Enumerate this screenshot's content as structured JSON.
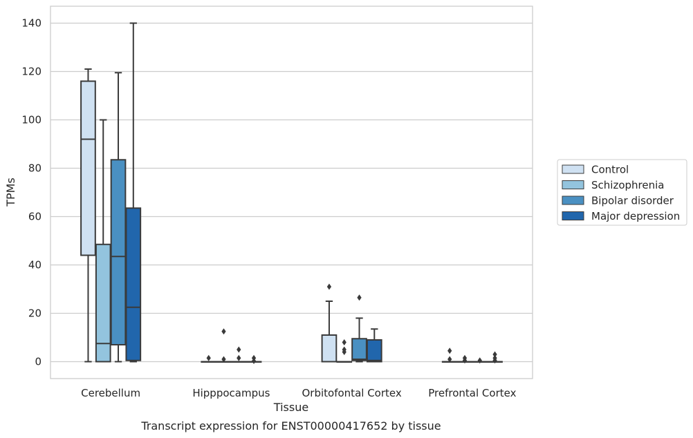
{
  "chart_data": {
    "type": "box",
    "title": "",
    "caption": "Transcript expression for ENST00000417652 by tissue",
    "xlabel": "Tissue",
    "ylabel": "TPMs",
    "ylim": [
      -7,
      147
    ],
    "yticks": [
      0,
      20,
      40,
      60,
      80,
      100,
      120,
      140
    ],
    "grid": "horizontal",
    "legend_position": "right",
    "categories": [
      "Cerebellum",
      "Hipppocampus",
      "Orbitofontal Cortex",
      "Prefrontal Cortex"
    ],
    "series": [
      {
        "name": "Control",
        "color": "#cfe1f2",
        "boxes": [
          {
            "min": 0,
            "q1": 44,
            "median": 92,
            "q3": 116,
            "max": 121,
            "outliers": []
          },
          {
            "min": 0,
            "q1": 0,
            "median": 0,
            "q3": 0,
            "max": 0,
            "outliers": [
              1.5
            ]
          },
          {
            "min": 0,
            "q1": 0,
            "median": 0,
            "q3": 11,
            "max": 25,
            "outliers": [
              31
            ]
          },
          {
            "min": 0,
            "q1": 0,
            "median": 0,
            "q3": 0,
            "max": 0,
            "outliers": [
              1,
              4.5
            ]
          }
        ]
      },
      {
        "name": "Schizophrenia",
        "color": "#93c4de",
        "boxes": [
          {
            "min": 0,
            "q1": 0,
            "median": 7.5,
            "q3": 48.5,
            "max": 100,
            "outliers": []
          },
          {
            "min": 0,
            "q1": 0,
            "median": 0,
            "q3": 0,
            "max": 0,
            "outliers": [
              1,
              12.5
            ]
          },
          {
            "min": 0,
            "q1": 0,
            "median": 0,
            "q3": 0,
            "max": 0,
            "outliers": [
              4,
              5,
              8
            ]
          },
          {
            "min": 0,
            "q1": 0,
            "median": 0,
            "q3": 0,
            "max": 0,
            "outliers": [
              0.5,
              1.5
            ]
          }
        ]
      },
      {
        "name": "Bipolar disorder",
        "color": "#4a90c2",
        "boxes": [
          {
            "min": 0,
            "q1": 7,
            "median": 43.5,
            "q3": 83.5,
            "max": 119.5,
            "outliers": []
          },
          {
            "min": 0,
            "q1": 0,
            "median": 0,
            "q3": 0,
            "max": 0,
            "outliers": [
              1.5,
              5
            ]
          },
          {
            "min": 0,
            "q1": 0.5,
            "median": 1,
            "q3": 9.5,
            "max": 18,
            "outliers": [
              26.5
            ]
          },
          {
            "min": 0,
            "q1": 0,
            "median": 0,
            "q3": 0,
            "max": 0,
            "outliers": [
              0.5
            ]
          }
        ]
      },
      {
        "name": "Major depression",
        "color": "#2166ac",
        "boxes": [
          {
            "min": 0,
            "q1": 0.5,
            "median": 22.5,
            "q3": 63.5,
            "max": 140,
            "outliers": []
          },
          {
            "min": 0,
            "q1": 0,
            "median": 0,
            "q3": 0,
            "max": 0,
            "outliers": [
              0.3,
              1.5
            ]
          },
          {
            "min": 0,
            "q1": 0,
            "median": 0.5,
            "q3": 9,
            "max": 13.5,
            "outliers": []
          },
          {
            "min": 0,
            "q1": 0,
            "median": 0,
            "q3": 0,
            "max": 0,
            "outliers": [
              0.5,
              1.5,
              3
            ]
          }
        ]
      }
    ]
  }
}
